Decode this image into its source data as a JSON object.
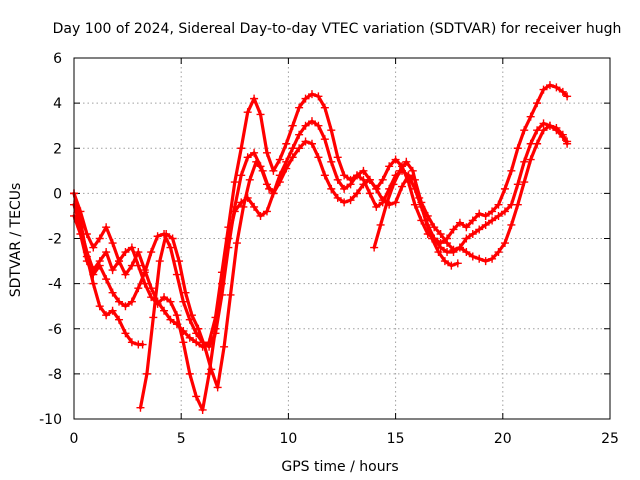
{
  "chart_data": {
    "type": "scatter",
    "title": "Day 100 of 2024, Sidereal Day-to-day VTEC variation (SDTVAR) for receiver hugh",
    "xlabel": "GPS time / hours",
    "ylabel": "SDTVAR / TECUs",
    "xlim": [
      0,
      25
    ],
    "ylim": [
      -10,
      6
    ],
    "x_ticks": [
      0,
      5,
      10,
      15,
      20,
      25
    ],
    "y_ticks": [
      -10,
      -8,
      -6,
      -4,
      -2,
      0,
      2,
      4,
      6
    ],
    "grid": true,
    "marker": "+",
    "color": "#ff0000",
    "series": [
      {
        "x": [
          0.0,
          0.3,
          0.6,
          0.9,
          1.2,
          1.5,
          1.8,
          2.1,
          2.4,
          2.7,
          3.0,
          3.3,
          3.6,
          3.9,
          4.2,
          4.5,
          4.8,
          5.1,
          5.4,
          5.7,
          6.0,
          6.3,
          6.6,
          6.9,
          7.2,
          7.5,
          7.8,
          8.1,
          8.4,
          8.7,
          9.0,
          9.3,
          9.6,
          9.9,
          10.2,
          10.5,
          10.8,
          11.1,
          11.4,
          11.7,
          12.0,
          12.3,
          12.6,
          12.9,
          13.2,
          13.5,
          13.8,
          14.1,
          14.4,
          14.7,
          15.0,
          15.3,
          15.6,
          15.9,
          16.2,
          16.5,
          16.8,
          17.1,
          17.4,
          17.7,
          18.0,
          18.3,
          18.6,
          18.9,
          19.2,
          19.5,
          19.8,
          20.1,
          20.4,
          20.7,
          21.0,
          21.3,
          21.6,
          21.9,
          22.2,
          22.5,
          22.8,
          23.0
        ],
        "y": [
          0.0,
          -0.8,
          -1.8,
          -2.4,
          -2.0,
          -1.5,
          -2.2,
          -3.0,
          -3.6,
          -3.2,
          -2.6,
          -3.4,
          -4.2,
          -4.8,
          -5.2,
          -5.6,
          -5.8,
          -6.1,
          -6.4,
          -6.6,
          -6.8,
          -6.6,
          -5.5,
          -3.5,
          -1.5,
          0.5,
          2.0,
          3.6,
          4.2,
          3.5,
          1.8,
          1.0,
          1.5,
          2.2,
          3.0,
          3.8,
          4.2,
          4.4,
          4.3,
          3.8,
          2.8,
          1.6,
          0.8,
          0.6,
          0.8,
          1.0,
          0.6,
          0.2,
          0.6,
          1.2,
          1.5,
          1.2,
          0.5,
          -0.5,
          -1.2,
          -1.8,
          -2.0,
          -2.2,
          -2.0,
          -1.6,
          -1.3,
          -1.5,
          -1.2,
          -0.9,
          -1.0,
          -0.8,
          -0.5,
          0.2,
          1.0,
          2.0,
          2.8,
          3.4,
          4.0,
          4.6,
          4.8,
          4.7,
          4.5,
          4.3
        ]
      },
      {
        "x": [
          0.0,
          0.3,
          0.6,
          0.9,
          1.2,
          1.5,
          1.8,
          2.1,
          2.4,
          2.7,
          3.0,
          3.3,
          3.6,
          3.9,
          4.2,
          4.5,
          4.8,
          5.1,
          5.4,
          5.7,
          6.0,
          6.3,
          6.6,
          6.9,
          7.2,
          7.5,
          7.8,
          8.1,
          8.4,
          8.7,
          9.0,
          9.3,
          9.6,
          9.9,
          10.2,
          10.5,
          10.8,
          11.1,
          11.4,
          11.7,
          12.0,
          12.3,
          12.6,
          12.9,
          13.2,
          13.5,
          13.8,
          14.1,
          14.4,
          14.7,
          15.0,
          15.3,
          15.6,
          15.9,
          16.2,
          16.5,
          16.8,
          17.1,
          17.4,
          17.7,
          18.0,
          18.3,
          18.6,
          18.9,
          19.2,
          19.5,
          19.8,
          20.1,
          20.4,
          20.7,
          21.0,
          21.3,
          21.6,
          21.9,
          22.2,
          22.5,
          22.8,
          23.0
        ],
        "y": [
          -1.0,
          -1.8,
          -3.0,
          -3.6,
          -3.2,
          -3.8,
          -4.4,
          -4.8,
          -5.0,
          -4.8,
          -4.2,
          -3.5,
          -2.6,
          -1.9,
          -1.8,
          -2.4,
          -3.6,
          -4.8,
          -5.6,
          -6.2,
          -6.6,
          -6.8,
          -6.2,
          -4.5,
          -2.4,
          -0.6,
          0.8,
          1.6,
          1.8,
          1.2,
          0.4,
          0.0,
          0.5,
          1.1,
          1.6,
          2.0,
          2.3,
          2.2,
          1.6,
          0.8,
          0.2,
          -0.2,
          -0.4,
          -0.3,
          0.0,
          0.4,
          0.6,
          0.2,
          -0.3,
          -0.5,
          -0.4,
          0.3,
          0.8,
          0.6,
          -0.4,
          -1.0,
          -1.5,
          -1.8,
          -2.2,
          -2.5,
          -2.4,
          -2.0,
          -1.8,
          -1.6,
          -1.4,
          -1.2,
          -1.0,
          -0.8,
          -0.5,
          0.4,
          1.4,
          2.2,
          2.8,
          3.1,
          3.0,
          2.9,
          2.6,
          2.2
        ]
      },
      {
        "x": [
          0.0,
          0.3,
          0.6,
          0.9,
          1.2,
          1.5,
          1.8,
          2.1,
          2.4,
          2.7,
          3.0,
          3.3,
          3.6,
          3.9,
          4.2,
          4.5,
          4.8,
          5.1,
          5.4,
          5.7,
          6.0,
          6.3,
          6.6,
          6.9,
          7.2,
          7.5,
          7.8,
          8.1,
          8.4,
          8.7,
          9.0,
          9.3,
          9.6,
          9.9,
          10.2,
          10.5,
          10.8,
          11.1,
          11.4,
          11.7,
          12.0,
          12.3,
          12.6,
          12.9,
          13.2,
          13.5,
          13.8,
          14.1,
          14.4,
          14.7,
          15.0,
          15.3,
          15.6,
          15.9,
          16.2,
          16.5,
          16.8,
          17.1,
          17.4,
          17.7,
          18.0,
          18.3,
          18.6,
          18.9,
          19.2,
          19.5,
          19.8,
          20.1,
          20.4,
          20.7,
          21.0,
          21.3,
          21.6,
          21.9,
          22.2,
          22.5,
          22.8,
          23.0
        ],
        "y": [
          -0.5,
          -1.5,
          -2.6,
          -3.4,
          -3.0,
          -2.6,
          -3.4,
          -3.0,
          -2.6,
          -2.4,
          -3.2,
          -4.0,
          -4.6,
          -4.9,
          -4.6,
          -4.8,
          -5.4,
          -6.6,
          -8.0,
          -9.0,
          -9.6,
          -8.0,
          -6.0,
          -4.0,
          -2.0,
          -0.8,
          -0.4,
          -0.2,
          -0.6,
          -1.0,
          -0.8,
          0.0,
          0.8,
          1.4,
          2.0,
          2.6,
          3.0,
          3.2,
          3.0,
          2.4,
          1.4,
          0.6,
          0.2,
          0.4,
          0.8,
          0.6,
          0.0,
          -0.6,
          -0.4,
          0.2,
          0.8,
          1.0,
          0.8,
          0.2,
          -0.6,
          -1.4,
          -2.0,
          -2.4,
          -2.6,
          -2.6,
          -2.4,
          -2.6,
          -2.8,
          -2.9,
          -3.0,
          -2.9,
          -2.6,
          -2.2,
          -1.4,
          -0.5,
          0.5,
          1.5,
          2.2,
          2.8,
          3.0,
          2.8,
          2.5,
          2.3
        ]
      },
      {
        "x": [
          0.0,
          0.3,
          0.6,
          0.9,
          1.2,
          1.5,
          1.8,
          2.1,
          2.4,
          2.7,
          3.0,
          3.2
        ],
        "y": [
          0.0,
          -1.2,
          -2.8,
          -4.0,
          -5.0,
          -5.4,
          -5.2,
          -5.6,
          -6.2,
          -6.6,
          -6.7,
          -6.7
        ]
      },
      {
        "x": [
          3.1,
          3.4,
          3.7,
          4.0,
          4.3,
          4.6,
          4.9,
          5.2,
          5.5,
          5.8,
          6.1,
          6.4,
          6.7,
          7.0,
          7.3,
          7.6,
          7.9,
          8.2,
          8.5,
          8.8,
          9.1
        ],
        "y": [
          -9.5,
          -8.0,
          -5.5,
          -3.0,
          -1.8,
          -2.0,
          -3.0,
          -4.4,
          -5.4,
          -6.0,
          -6.8,
          -7.8,
          -8.6,
          -6.8,
          -4.5,
          -2.2,
          -0.6,
          0.6,
          1.4,
          1.0,
          0.2
        ]
      },
      {
        "x": [
          14.0,
          14.3,
          14.6,
          14.9,
          15.2,
          15.5,
          15.8,
          16.1,
          16.4,
          16.7,
          17.0,
          17.3,
          17.6,
          17.9
        ],
        "y": [
          -2.4,
          -1.4,
          -0.4,
          0.4,
          1.0,
          1.4,
          1.0,
          -0.2,
          -1.2,
          -2.0,
          -2.6,
          -3.0,
          -3.2,
          -3.1
        ]
      }
    ]
  }
}
